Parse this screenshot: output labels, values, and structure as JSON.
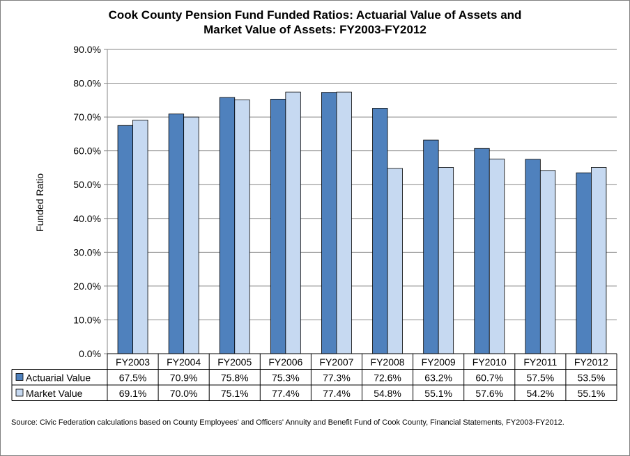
{
  "chart_data": {
    "type": "bar",
    "title_line1": "Cook County Pension Fund Funded Ratios: Actuarial Value of Assets and",
    "title_line2": "Market Value of Assets: FY2003-FY2012",
    "xlabel": "",
    "ylabel": "Funded Ratio",
    "ylim": [
      0,
      90
    ],
    "yticks": [
      "0.0%",
      "10.0%",
      "20.0%",
      "30.0%",
      "40.0%",
      "50.0%",
      "60.0%",
      "70.0%",
      "80.0%",
      "90.0%"
    ],
    "grid": true,
    "legend_placement": "data-table",
    "categories": [
      "FY2003",
      "FY2004",
      "FY2005",
      "FY2006",
      "FY2007",
      "FY2008",
      "FY2009",
      "FY2010",
      "FY2011",
      "FY2012"
    ],
    "series": [
      {
        "name": "Actuarial Value",
        "color": "#4f81bd",
        "values": [
          67.5,
          70.9,
          75.8,
          75.3,
          77.3,
          72.6,
          63.2,
          60.7,
          57.5,
          53.5
        ],
        "labels": [
          "67.5%",
          "70.9%",
          "75.8%",
          "75.3%",
          "77.3%",
          "72.6%",
          "63.2%",
          "60.7%",
          "57.5%",
          "53.5%"
        ]
      },
      {
        "name": "Market Value",
        "color": "#c6d9f1",
        "values": [
          69.1,
          70.0,
          75.1,
          77.4,
          77.4,
          54.8,
          55.1,
          57.6,
          54.2,
          55.1
        ],
        "labels": [
          "69.1%",
          "70.0%",
          "75.1%",
          "77.4%",
          "77.4%",
          "54.8%",
          "55.1%",
          "57.6%",
          "54.2%",
          "55.1%"
        ]
      }
    ]
  },
  "source_note": "Source: Civic Federation calculations based on County Employees' and Officers' Annuity and Benefit Fund of Cook County, Financial Statements, FY2003-FY2012."
}
